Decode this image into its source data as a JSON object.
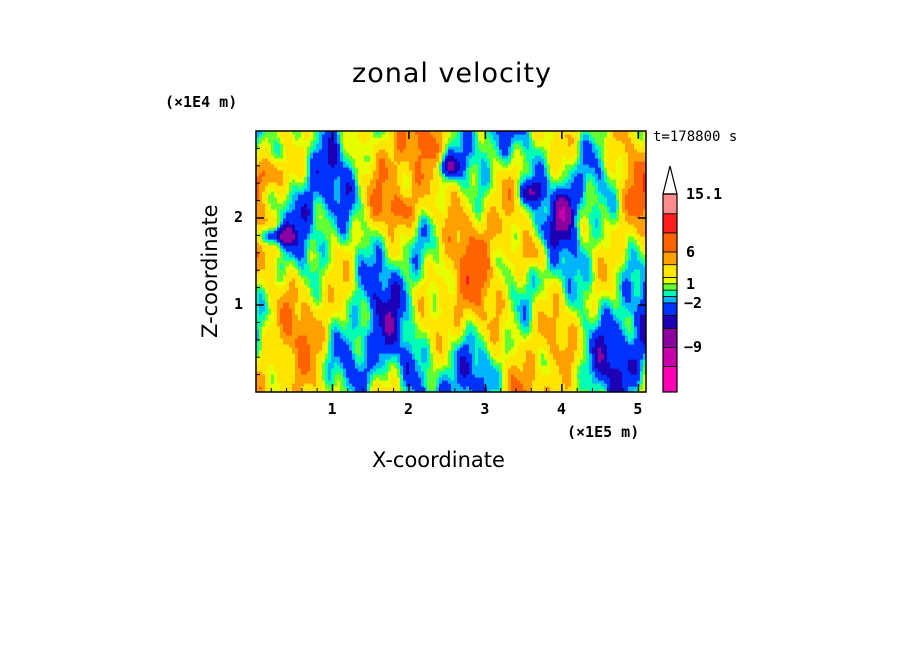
{
  "chart_data": {
    "type": "heatmap",
    "title": "zonal velocity",
    "xlabel": "X-coordinate",
    "ylabel": "Z-coordinate",
    "x_unit": "(×1E5 m)",
    "y_unit": "(×1E4 m)",
    "time_label": "t=178800 s",
    "xlim": [
      0,
      5.1
    ],
    "ylim": [
      0,
      3
    ],
    "x_ticks": [
      "1",
      "2",
      "3",
      "4",
      "5"
    ],
    "y_ticks": [
      "1",
      "2"
    ],
    "x_tick_values": [
      1,
      2,
      3,
      4,
      5
    ],
    "y_tick_values": [
      1,
      2
    ],
    "colorbar": {
      "labels": [
        "15.1",
        "6",
        "1",
        "-2",
        "-9"
      ],
      "label_values": [
        15.1,
        6,
        1,
        -2,
        -9
      ],
      "levels": [
        -16,
        -12,
        -9,
        -6,
        -4,
        -2,
        -1,
        0,
        1,
        2,
        4,
        6,
        9,
        12,
        15.1
      ],
      "colors": [
        "#ff00b4",
        "#c800aa",
        "#8c00a0",
        "#1e00b4",
        "#0032ff",
        "#00b4ff",
        "#00ffb4",
        "#64ff32",
        "#e6ff00",
        "#ffe600",
        "#ffa000",
        "#ff6400",
        "#ff1e1e",
        "#ff8c8c",
        "#ffc8c8"
      ],
      "extend_top_color": "#ffffff"
    }
  }
}
